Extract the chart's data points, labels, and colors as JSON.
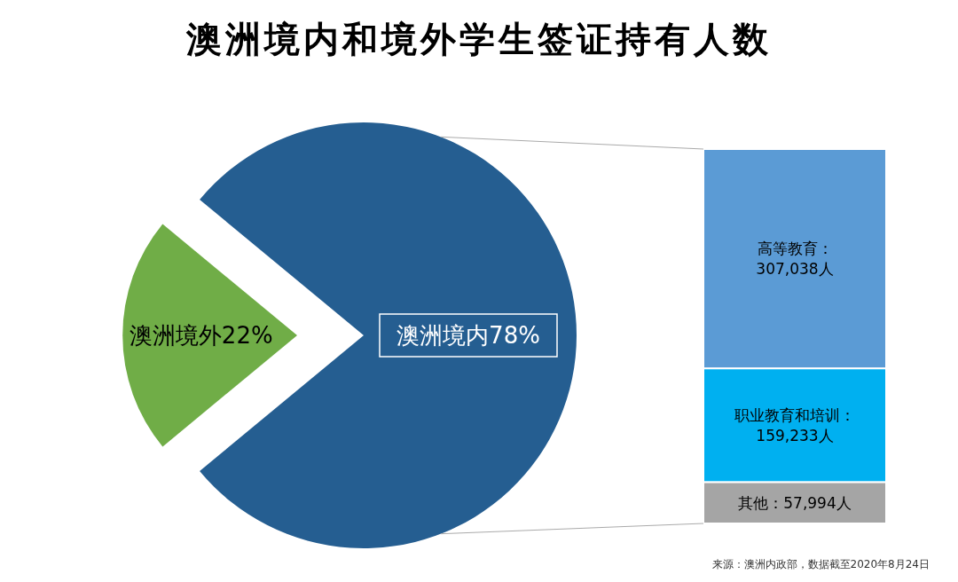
{
  "chart_data": [
    {
      "type": "pie",
      "title": "澳洲境内和境外学生签证持有人数",
      "categories": [
        "澳洲境外",
        "澳洲境内"
      ],
      "values": [
        22,
        78
      ],
      "value_labels": [
        "22%",
        "78%"
      ],
      "colors": [
        "#70ad47",
        "#255e91"
      ],
      "annotations": [
        "来源：澳洲内政部，数据截至2020年8月24日"
      ]
    },
    {
      "type": "bar",
      "stacked": true,
      "categories": [
        null
      ],
      "series": [
        {
          "color": "#a5a5a5",
          "values": [
            57994
          ],
          "value_labels": [
            "其他：57,994人"
          ]
        },
        {
          "color": "#00b0f0",
          "values": [
            159233
          ],
          "value_labels": [
            "职业教育和培训：\n159,233人"
          ]
        },
        {
          "color": "#5b9bd5",
          "values": [
            307038
          ],
          "value_labels": [
            "高等教育：\n307,038人"
          ]
        }
      ]
    }
  ]
}
